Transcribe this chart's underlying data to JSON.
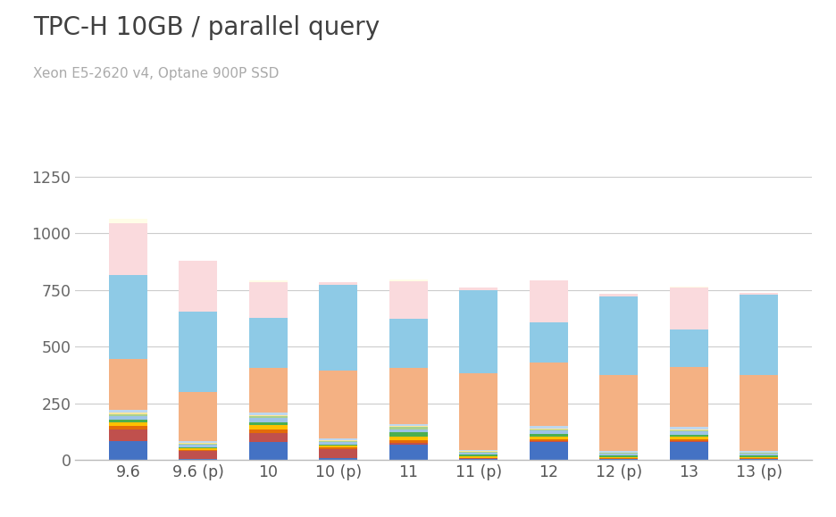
{
  "title": "TPC-H 10GB / parallel query",
  "subtitle": "Xeon E5-2620 v4, Optane 900P SSD",
  "categories": [
    "9.6",
    "9.6 (p)",
    "10",
    "10 (p)",
    "11",
    "11 (p)",
    "12",
    "12 (p)",
    "13",
    "13 (p)"
  ],
  "ylim": [
    0,
    1300
  ],
  "yticks": [
    0,
    250,
    500,
    750,
    1000,
    1250
  ],
  "background_color": "#ffffff",
  "bar_width": 0.55,
  "segments": [
    {
      "name": "blue_base",
      "color": "#4472c4",
      "values": [
        85,
        5,
        80,
        8,
        70,
        5,
        80,
        5,
        80,
        5
      ]
    },
    {
      "name": "red",
      "color": "#c0504d",
      "values": [
        50,
        35,
        40,
        42,
        8,
        3,
        5,
        2,
        5,
        2
      ]
    },
    {
      "name": "orange_red",
      "color": "#e36c09",
      "values": [
        15,
        5,
        15,
        5,
        10,
        3,
        5,
        3,
        5,
        3
      ]
    },
    {
      "name": "yellow",
      "color": "#ffc000",
      "values": [
        18,
        8,
        18,
        8,
        15,
        7,
        14,
        5,
        12,
        5
      ]
    },
    {
      "name": "green",
      "color": "#4caf50",
      "values": [
        10,
        5,
        15,
        7,
        20,
        6,
        12,
        5,
        10,
        5
      ]
    },
    {
      "name": "light_blue_small",
      "color": "#9dc3e6",
      "values": [
        18,
        12,
        18,
        9,
        14,
        7,
        14,
        7,
        14,
        7
      ]
    },
    {
      "name": "light_green",
      "color": "#a9d18e",
      "values": [
        8,
        4,
        8,
        4,
        8,
        5,
        6,
        4,
        6,
        4
      ]
    },
    {
      "name": "pale_yellow",
      "color": "#ffe699",
      "values": [
        5,
        4,
        5,
        4,
        5,
        4,
        5,
        3,
        5,
        3
      ]
    },
    {
      "name": "pale_blue",
      "color": "#bdd7ee",
      "values": [
        12,
        7,
        12,
        7,
        10,
        5,
        10,
        5,
        8,
        5
      ]
    },
    {
      "name": "peach_large",
      "color": "#f4b183",
      "values": [
        225,
        215,
        195,
        300,
        245,
        340,
        280,
        335,
        265,
        335
      ]
    },
    {
      "name": "teal_large",
      "color": "#8ecae6",
      "values": [
        370,
        355,
        220,
        380,
        220,
        365,
        175,
        350,
        165,
        355
      ]
    },
    {
      "name": "pink_large",
      "color": "#fadadd",
      "values": [
        230,
        225,
        160,
        10,
        165,
        10,
        185,
        10,
        185,
        10
      ]
    },
    {
      "name": "cream_top",
      "color": "#fffde7",
      "values": [
        18,
        0,
        5,
        3,
        5,
        0,
        0,
        0,
        5,
        0
      ]
    }
  ]
}
